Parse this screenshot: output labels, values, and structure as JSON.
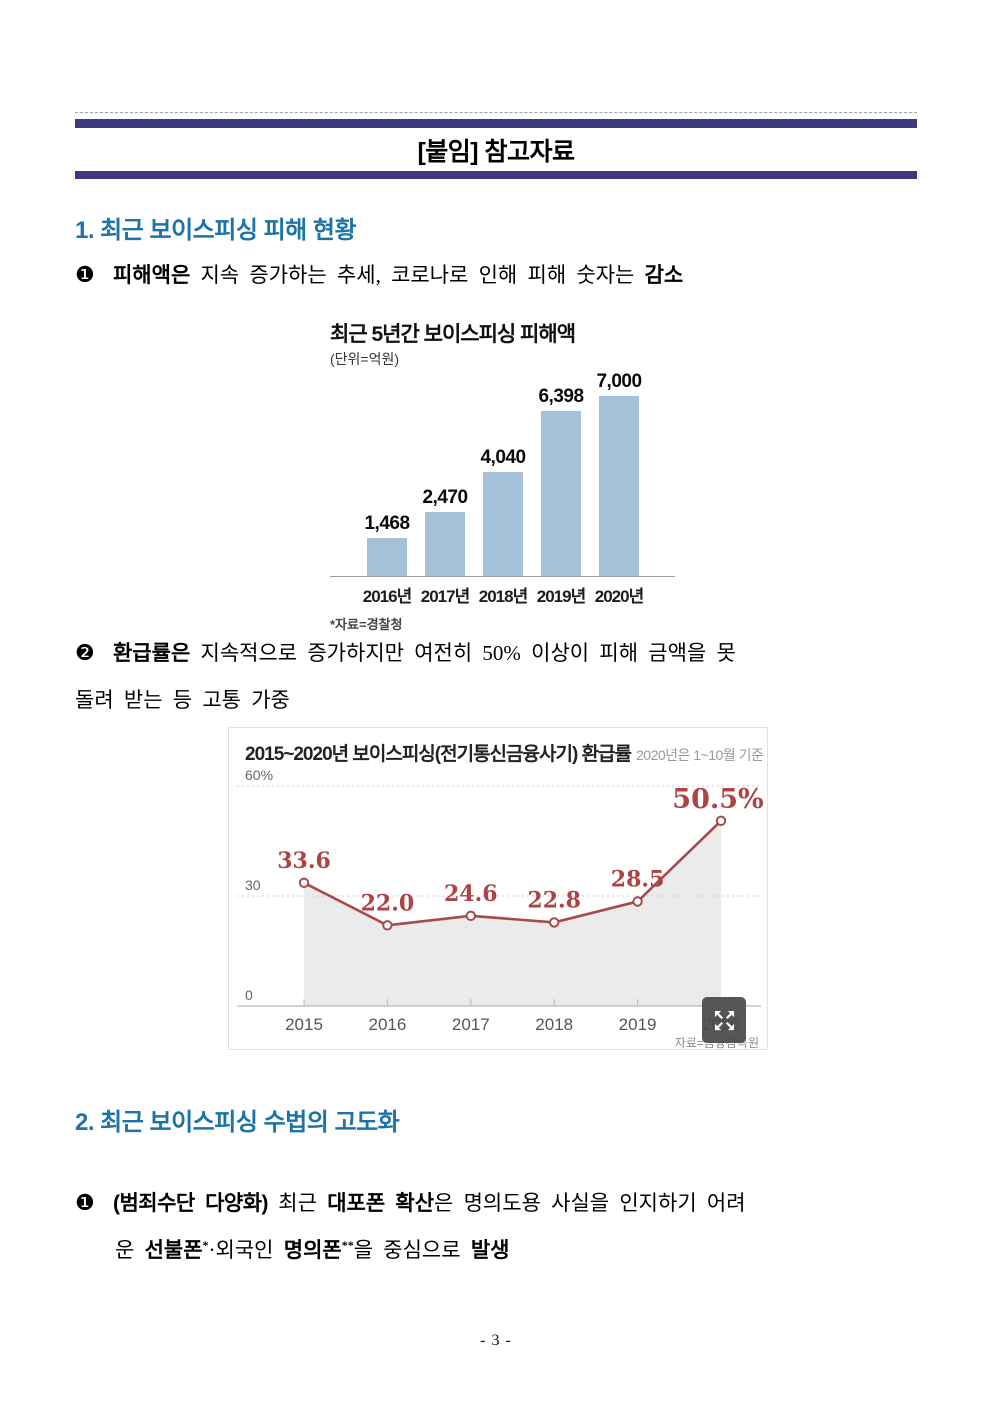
{
  "theme": {
    "header_bar_navy": "#3c3a7c",
    "section_heading_blue": "#1c73a8"
  },
  "header": {
    "title": "[붙임] 참고자료"
  },
  "section1": {
    "title": "1. 최근 보이스피싱 피해 현황",
    "bullet1": {
      "marker": "❶",
      "lead_bold": "피해액은",
      "middle": "지속 증가하는 추세, 코로나로 인해 피해 숫자는",
      "tail_bold": "감소"
    },
    "bullet2": {
      "marker": "❷",
      "lead_bold": "환급률은",
      "line1_rest": "지속적으로 증가하지만 여전히 50% 이상이 피해 금액을 못",
      "line2": "돌려 받는 등 고통 가중"
    }
  },
  "section2": {
    "title": "2. 최근 보이스피싱 수법의 고도화",
    "bullet1": {
      "marker": "❶",
      "bold1": "(범죄수단 다양화)",
      "reg1": "최근",
      "bold2": "대포폰 확산",
      "reg2": "은 명의도용 사실을 인지하기 어려",
      "line2": {
        "reg1": "운",
        "bold1": "선불폰",
        "sup1": "*",
        "reg2": "·외국인",
        "bold2": "명의폰",
        "sup2": "**",
        "reg3": "을 중심으로",
        "bold3": "발생"
      }
    }
  },
  "footer": {
    "page_number": "- 3 -"
  },
  "chart_data": [
    {
      "type": "bar",
      "title": "최근 5년간 보이스피싱 피해액",
      "unit_label": "(단위=억원)",
      "categories": [
        "2016년",
        "2017년",
        "2018년",
        "2019년",
        "2020년"
      ],
      "values": [
        1468,
        2470,
        4040,
        6398,
        7000
      ],
      "value_labels": [
        "1,468",
        "2,470",
        "4,040",
        "6,398",
        "7,000"
      ],
      "ylim": [
        0,
        7000
      ],
      "bar_color": "#a5c1d9",
      "source": "*자료=경찰청",
      "legend": "none",
      "grid": "off"
    },
    {
      "type": "line",
      "title": "2015~2020년 보이스피싱(전기통신금융사기) 환급률",
      "subtitle": "2020년은 1~10월 기준",
      "x": [
        "2015",
        "2016",
        "2017",
        "2018",
        "2019",
        "2020"
      ],
      "values": [
        33.6,
        22.0,
        24.6,
        22.8,
        28.5,
        50.5
      ],
      "point_labels": [
        "33.6",
        "22.0",
        "24.6",
        "22.8",
        "28.5",
        "50.5%"
      ],
      "yticks": [
        0,
        30,
        60
      ],
      "ytick_labels": [
        "0",
        "30",
        "60%"
      ],
      "ylim": [
        0,
        60
      ],
      "area_fill": true,
      "line_color": "#a8494b",
      "label_color": "#ad4343",
      "fill_color": "#ebebeb",
      "grid": "dotted horizontal gridlines at 30 and 60",
      "legend": "none",
      "source": "자료=금융감독원",
      "overlay_icon": "expand-icon"
    }
  ]
}
